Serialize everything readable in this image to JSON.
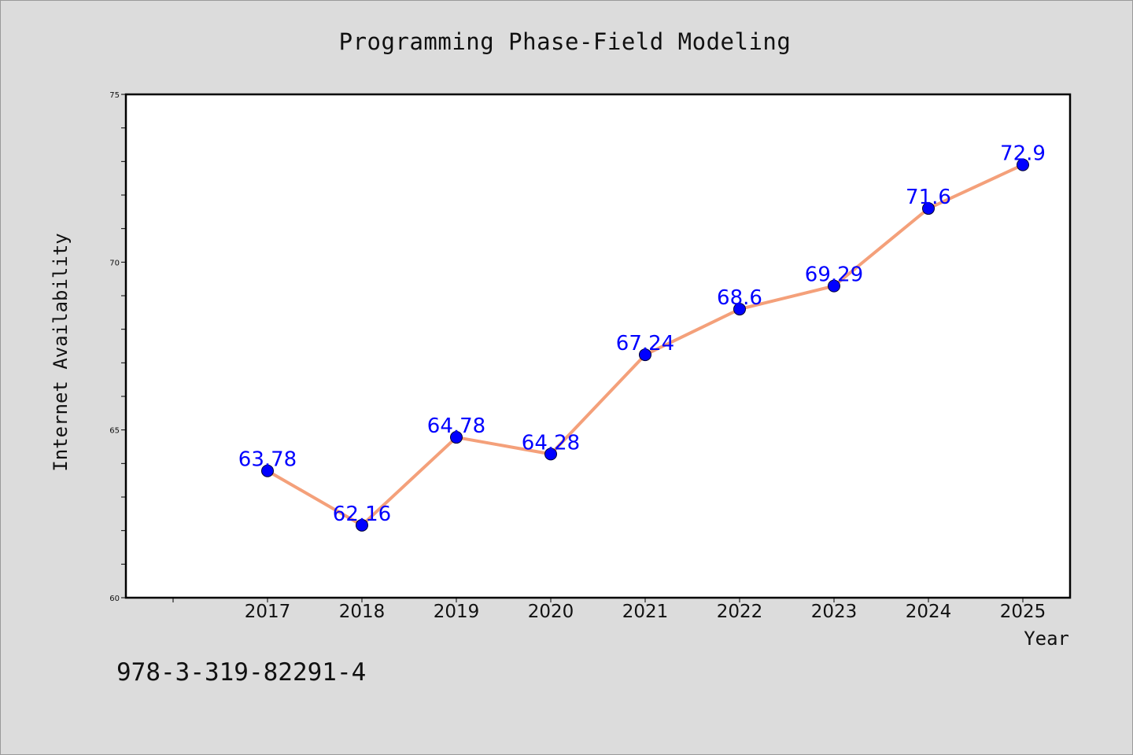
{
  "chart_data": {
    "type": "line",
    "title": "Programming Phase-Field Modeling",
    "xlabel": "Year",
    "ylabel": "Internet Availability",
    "x": [
      "2017",
      "2018",
      "2019",
      "2020",
      "2021",
      "2022",
      "2023",
      "2024",
      "2025"
    ],
    "series": [
      {
        "values": [
          63.78,
          62.16,
          64.78,
          64.28,
          67.24,
          68.6,
          69.29,
          71.6,
          72.9
        ],
        "data_labels": [
          "63.78",
          "62.16",
          "64.78",
          "64.28",
          "67.24",
          "68.6",
          "69.29",
          "71.6",
          "72.9"
        ],
        "line_color": "#f4a07a",
        "marker_color": "#0000ff"
      }
    ],
    "yticks": [
      "60",
      "65",
      "70",
      "75"
    ],
    "ylim": [
      60,
      75
    ],
    "grid": false,
    "legend": "none"
  },
  "footer": {
    "text": "978-3-319-82291-4"
  },
  "colors": {
    "background": "#dcdcdc",
    "plot_background": "#ffffff",
    "line": "#f4a07a",
    "marker": "#0000ff",
    "label": "#0000ff"
  }
}
